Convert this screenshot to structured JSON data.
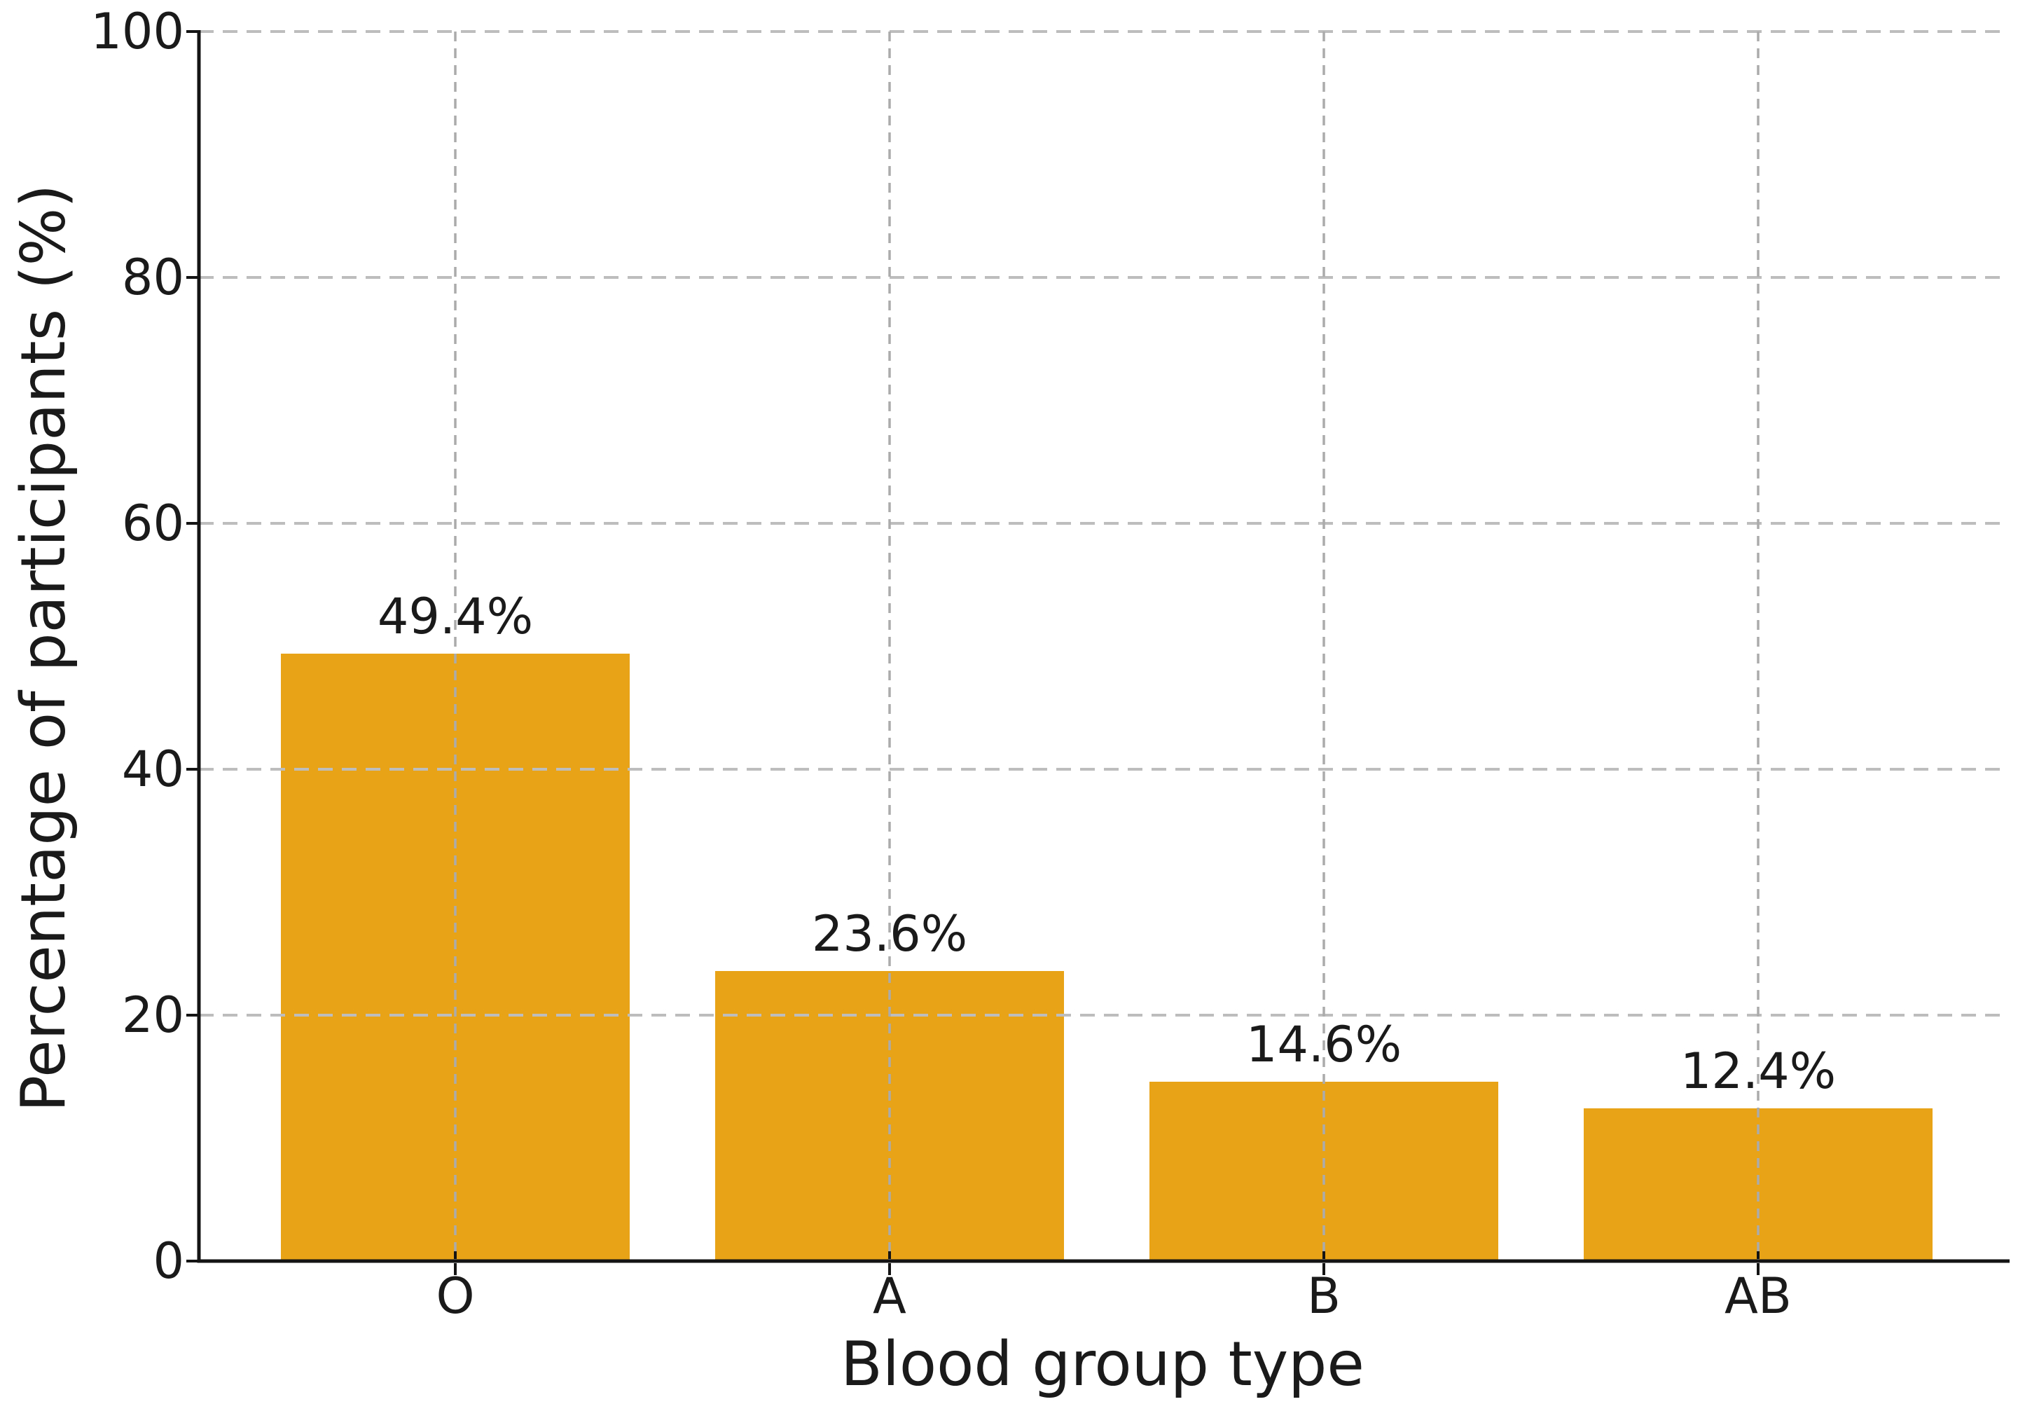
{
  "figure": {
    "background_color": "#ffffff",
    "text_color": "#1a1a1a",
    "axis_color": "#141414",
    "grid_color_horizontal": "#bdbdbd",
    "grid_color_vertical": "#ababab"
  },
  "chart_data": {
    "type": "bar",
    "title": "",
    "xlabel": "Blood group type",
    "ylabel": "Percentage of participants (%)",
    "categories": [
      "O",
      "A",
      "B",
      "AB"
    ],
    "values": [
      49.4,
      23.6,
      14.6,
      12.4
    ],
    "value_labels": [
      "49.4%",
      "23.6%",
      "14.6%",
      "12.4%"
    ],
    "bar_color": "#e8a317",
    "ylim": [
      0,
      100
    ],
    "yticks": [
      0,
      20,
      40,
      60,
      80,
      100
    ],
    "ytick_labels": [
      "0",
      "20",
      "40",
      "60",
      "80",
      "100"
    ],
    "grid": "horizontal and vertical dashed gridlines, drawn above bars",
    "legend_position": "none"
  }
}
